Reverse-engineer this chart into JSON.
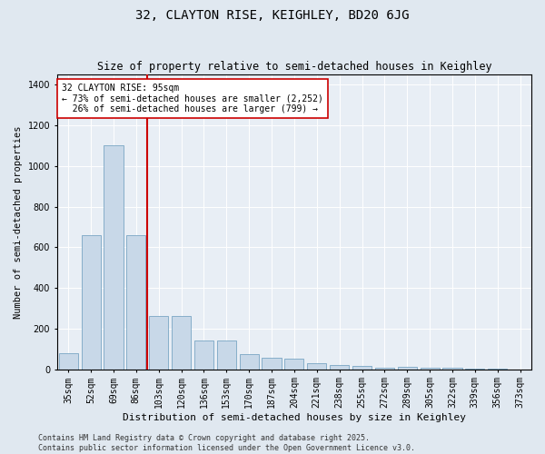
{
  "title1": "32, CLAYTON RISE, KEIGHLEY, BD20 6JG",
  "title2": "Size of property relative to semi-detached houses in Keighley",
  "xlabel": "Distribution of semi-detached houses by size in Keighley",
  "ylabel": "Number of semi-detached properties",
  "categories": [
    "35sqm",
    "52sqm",
    "69sqm",
    "86sqm",
    "103sqm",
    "120sqm",
    "136sqm",
    "153sqm",
    "170sqm",
    "187sqm",
    "204sqm",
    "221sqm",
    "238sqm",
    "255sqm",
    "272sqm",
    "289sqm",
    "305sqm",
    "322sqm",
    "339sqm",
    "356sqm",
    "373sqm"
  ],
  "values": [
    80,
    660,
    1100,
    660,
    260,
    260,
    140,
    140,
    75,
    58,
    50,
    28,
    22,
    15,
    5,
    13,
    8,
    5,
    4,
    4,
    0
  ],
  "bar_color": "#c8d8e8",
  "bar_edge_color": "#6699bb",
  "vline_x": 3.5,
  "vline_color": "#cc0000",
  "annotation_line1": "32 CLAYTON RISE: 95sqm",
  "annotation_line2": "← 73% of semi-detached houses are smaller (2,252)",
  "annotation_line3": "  26% of semi-detached houses are larger (799) →",
  "annotation_box_color": "#ffffff",
  "annotation_box_edge_color": "#cc0000",
  "ylim": [
    0,
    1450
  ],
  "yticks": [
    0,
    200,
    400,
    600,
    800,
    1000,
    1200,
    1400
  ],
  "bg_color": "#e0e8f0",
  "plot_bg_color": "#e8eef5",
  "footer_text": "Contains HM Land Registry data © Crown copyright and database right 2025.\nContains public sector information licensed under the Open Government Licence v3.0.",
  "title1_fontsize": 10,
  "title2_fontsize": 8.5,
  "xlabel_fontsize": 8,
  "ylabel_fontsize": 7.5,
  "tick_fontsize": 7,
  "annotation_fontsize": 7,
  "footer_fontsize": 6
}
